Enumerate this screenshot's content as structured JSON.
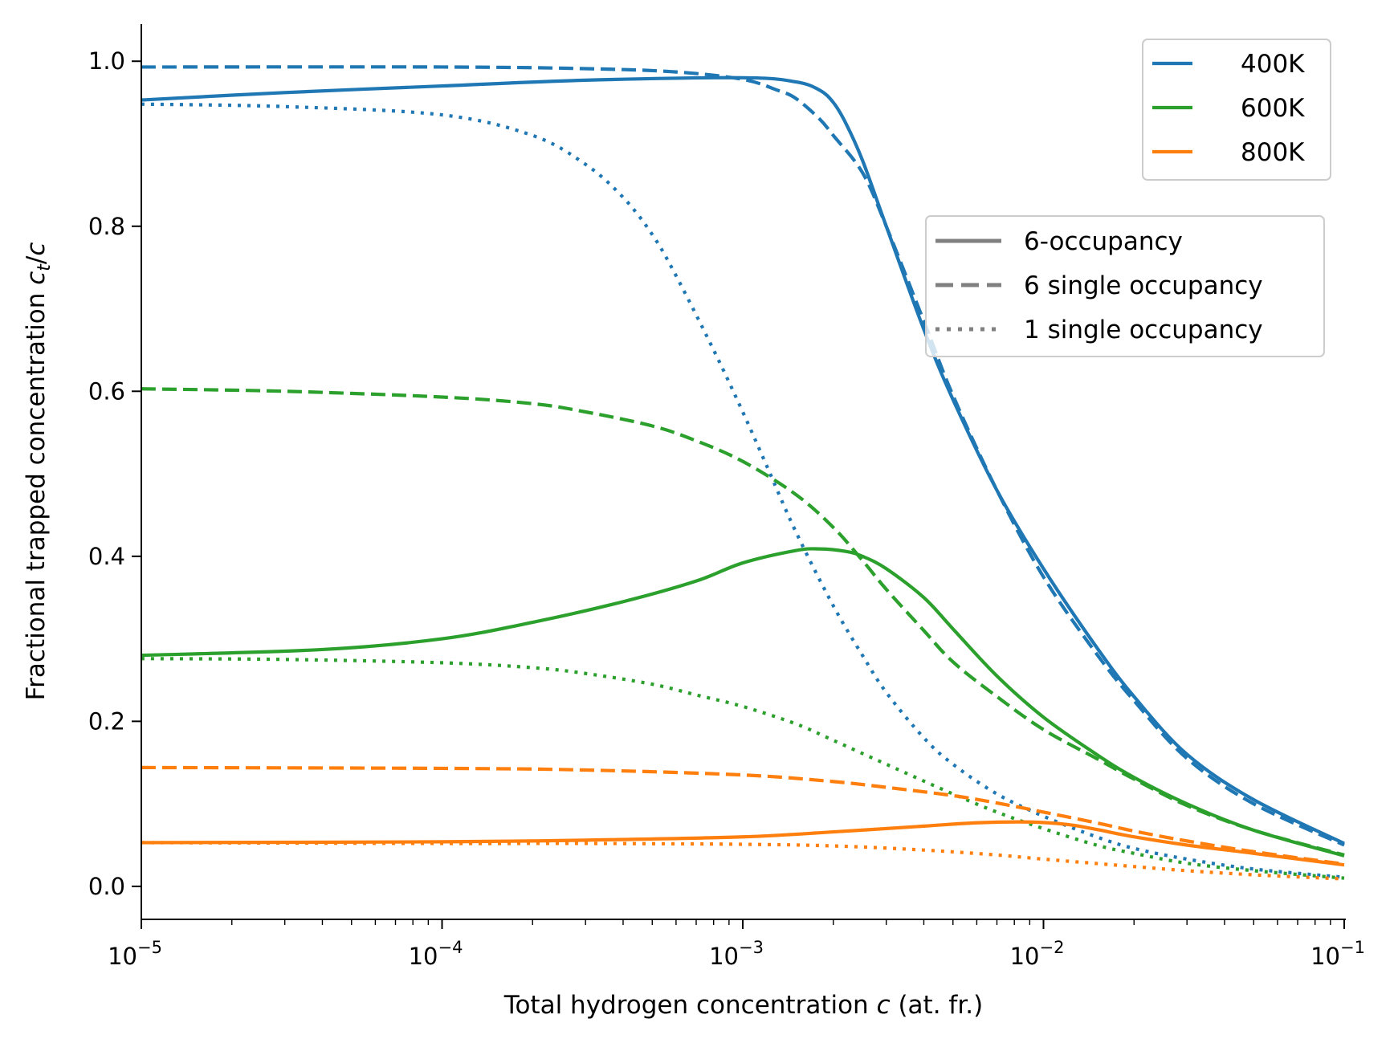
{
  "chart_data": {
    "type": "line",
    "xscale": "log",
    "xlim": [
      1e-05,
      0.1
    ],
    "ylim": [
      -0.04,
      1.045
    ],
    "xlabel": "Total hydrogen concentration c (at. fr.)",
    "xlabel_parts": [
      "Total hydrogen concentration ",
      "c",
      " (at. fr.)"
    ],
    "ylabel": "Fractional trapped concentration c_t/c",
    "ylabel_parts": [
      "Fractional trapped concentration ",
      "c",
      "t",
      "/",
      "c"
    ],
    "x_ticks": [
      {
        "value": 1e-05,
        "base": "10",
        "exp": "−5"
      },
      {
        "value": 0.0001,
        "base": "10",
        "exp": "−4"
      },
      {
        "value": 0.001,
        "base": "10",
        "exp": "−3"
      },
      {
        "value": 0.01,
        "base": "10",
        "exp": "−2"
      },
      {
        "value": 0.1,
        "base": "10",
        "exp": "−1"
      }
    ],
    "y_ticks": [
      {
        "value": 0.0,
        "label": "0.0"
      },
      {
        "value": 0.2,
        "label": "0.2"
      },
      {
        "value": 0.4,
        "label": "0.4"
      },
      {
        "value": 0.6,
        "label": "0.6"
      },
      {
        "value": 0.8,
        "label": "0.8"
      },
      {
        "value": 1.0,
        "label": "1.0"
      }
    ],
    "colors": {
      "400K": "#1f77b4",
      "600K": "#2ca02c",
      "800K": "#ff7f0e",
      "style_legend": "#808080"
    },
    "legend_temperature": [
      {
        "label": "400K",
        "color": "#1f77b4"
      },
      {
        "label": "600K",
        "color": "#2ca02c"
      },
      {
        "label": "800K",
        "color": "#ff7f0e"
      }
    ],
    "legend_style": [
      {
        "label": "6-occupancy",
        "style": "solid"
      },
      {
        "label": "6 single occupancy",
        "style": "dashed"
      },
      {
        "label": "1 single occupancy",
        "style": "dotted"
      }
    ],
    "series": [
      {
        "name": "400K 6-occupancy",
        "temperature": "400K",
        "model": "6-occupancy",
        "style": "solid",
        "x": [
          1e-05,
          3e-05,
          0.0001,
          0.0003,
          0.001,
          0.0015,
          0.0018,
          0.002,
          0.0022,
          0.0025,
          0.003,
          0.004,
          0.005,
          0.007,
          0.01,
          0.015,
          0.02,
          0.03,
          0.05,
          0.1
        ],
        "y": [
          0.953,
          0.962,
          0.97,
          0.977,
          0.98,
          0.975,
          0.965,
          0.95,
          0.925,
          0.88,
          0.8,
          0.675,
          0.59,
          0.48,
          0.385,
          0.29,
          0.23,
          0.16,
          0.105,
          0.052
        ]
      },
      {
        "name": "400K 6 single occupancy",
        "temperature": "400K",
        "model": "6 single occupancy",
        "style": "dashed",
        "x": [
          1e-05,
          0.0001,
          0.0003,
          0.0006,
          0.001,
          0.0013,
          0.0015,
          0.0018,
          0.002,
          0.0025,
          0.003,
          0.004,
          0.005,
          0.007,
          0.01,
          0.015,
          0.02,
          0.03,
          0.05,
          0.1
        ],
        "y": [
          0.993,
          0.993,
          0.991,
          0.987,
          0.978,
          0.965,
          0.955,
          0.93,
          0.91,
          0.865,
          0.8,
          0.685,
          0.595,
          0.48,
          0.375,
          0.282,
          0.225,
          0.155,
          0.1,
          0.05
        ]
      },
      {
        "name": "400K 1 single occupancy",
        "temperature": "400K",
        "model": "1 single occupancy",
        "style": "dotted",
        "x": [
          1e-05,
          3e-05,
          0.0001,
          0.0002,
          0.0003,
          0.0004,
          0.0005,
          0.0006,
          0.0008,
          0.001,
          0.0012,
          0.0015,
          0.002,
          0.0025,
          0.003,
          0.004,
          0.005,
          0.007,
          0.01,
          0.015,
          0.02,
          0.03,
          0.05,
          0.1
        ],
        "y": [
          0.948,
          0.945,
          0.935,
          0.91,
          0.875,
          0.835,
          0.79,
          0.74,
          0.65,
          0.575,
          0.51,
          0.43,
          0.34,
          0.28,
          0.235,
          0.18,
          0.148,
          0.112,
          0.085,
          0.06,
          0.046,
          0.033,
          0.021,
          0.011
        ]
      },
      {
        "name": "600K 6-occupancy",
        "temperature": "600K",
        "model": "6-occupancy",
        "style": "solid",
        "x": [
          1e-05,
          4e-05,
          0.0001,
          0.0002,
          0.0004,
          0.0007,
          0.001,
          0.0015,
          0.0018,
          0.0022,
          0.0025,
          0.003,
          0.004,
          0.005,
          0.007,
          0.01,
          0.015,
          0.02,
          0.03,
          0.05,
          0.1
        ],
        "y": [
          0.28,
          0.287,
          0.3,
          0.32,
          0.345,
          0.37,
          0.392,
          0.407,
          0.409,
          0.406,
          0.4,
          0.385,
          0.35,
          0.312,
          0.255,
          0.205,
          0.16,
          0.132,
          0.1,
          0.068,
          0.037
        ]
      },
      {
        "name": "600K 6 single occupancy",
        "temperature": "600K",
        "model": "6 single occupancy",
        "style": "dashed",
        "x": [
          1e-05,
          3e-05,
          0.0001,
          0.0002,
          0.0003,
          0.0005,
          0.0007,
          0.001,
          0.0015,
          0.002,
          0.0025,
          0.003,
          0.004,
          0.005,
          0.007,
          0.01,
          0.015,
          0.02,
          0.03,
          0.05,
          0.1
        ],
        "y": [
          0.603,
          0.6,
          0.593,
          0.585,
          0.575,
          0.558,
          0.54,
          0.515,
          0.475,
          0.435,
          0.395,
          0.36,
          0.31,
          0.272,
          0.23,
          0.19,
          0.155,
          0.13,
          0.098,
          0.068,
          0.038
        ]
      },
      {
        "name": "600K 1 single occupancy",
        "temperature": "600K",
        "model": "1 single occupancy",
        "style": "dotted",
        "x": [
          1e-05,
          3e-05,
          0.0001,
          0.0002,
          0.0003,
          0.0005,
          0.0007,
          0.001,
          0.0015,
          0.002,
          0.003,
          0.005,
          0.007,
          0.01,
          0.015,
          0.02,
          0.03,
          0.05,
          0.1
        ],
        "y": [
          0.276,
          0.275,
          0.271,
          0.265,
          0.258,
          0.245,
          0.232,
          0.218,
          0.197,
          0.177,
          0.148,
          0.112,
          0.09,
          0.07,
          0.05,
          0.04,
          0.028,
          0.019,
          0.01
        ]
      },
      {
        "name": "800K 6-occupancy",
        "temperature": "800K",
        "model": "6-occupancy",
        "style": "solid",
        "x": [
          1e-05,
          0.0001,
          0.0003,
          0.001,
          0.002,
          0.004,
          0.006,
          0.009,
          0.012,
          0.015,
          0.02,
          0.03,
          0.05,
          0.1
        ],
        "y": [
          0.053,
          0.054,
          0.056,
          0.06,
          0.066,
          0.073,
          0.077,
          0.078,
          0.075,
          0.069,
          0.06,
          0.05,
          0.04,
          0.026
        ]
      },
      {
        "name": "800K 6 single occupancy",
        "temperature": "800K",
        "model": "6 single occupancy",
        "style": "dashed",
        "x": [
          1e-05,
          0.0001,
          0.0003,
          0.001,
          0.002,
          0.003,
          0.005,
          0.007,
          0.01,
          0.015,
          0.02,
          0.03,
          0.05,
          0.1
        ],
        "y": [
          0.144,
          0.143,
          0.141,
          0.135,
          0.127,
          0.12,
          0.11,
          0.101,
          0.09,
          0.077,
          0.067,
          0.055,
          0.042,
          0.027
        ]
      },
      {
        "name": "800K 1 single occupancy",
        "temperature": "800K",
        "model": "1 single occupancy",
        "style": "dotted",
        "x": [
          1e-05,
          0.0001,
          0.0003,
          0.001,
          0.002,
          0.004,
          0.007,
          0.01,
          0.02,
          0.03,
          0.05,
          0.1
        ],
        "y": [
          0.053,
          0.052,
          0.052,
          0.051,
          0.049,
          0.044,
          0.038,
          0.033,
          0.024,
          0.019,
          0.014,
          0.009
        ]
      }
    ]
  }
}
